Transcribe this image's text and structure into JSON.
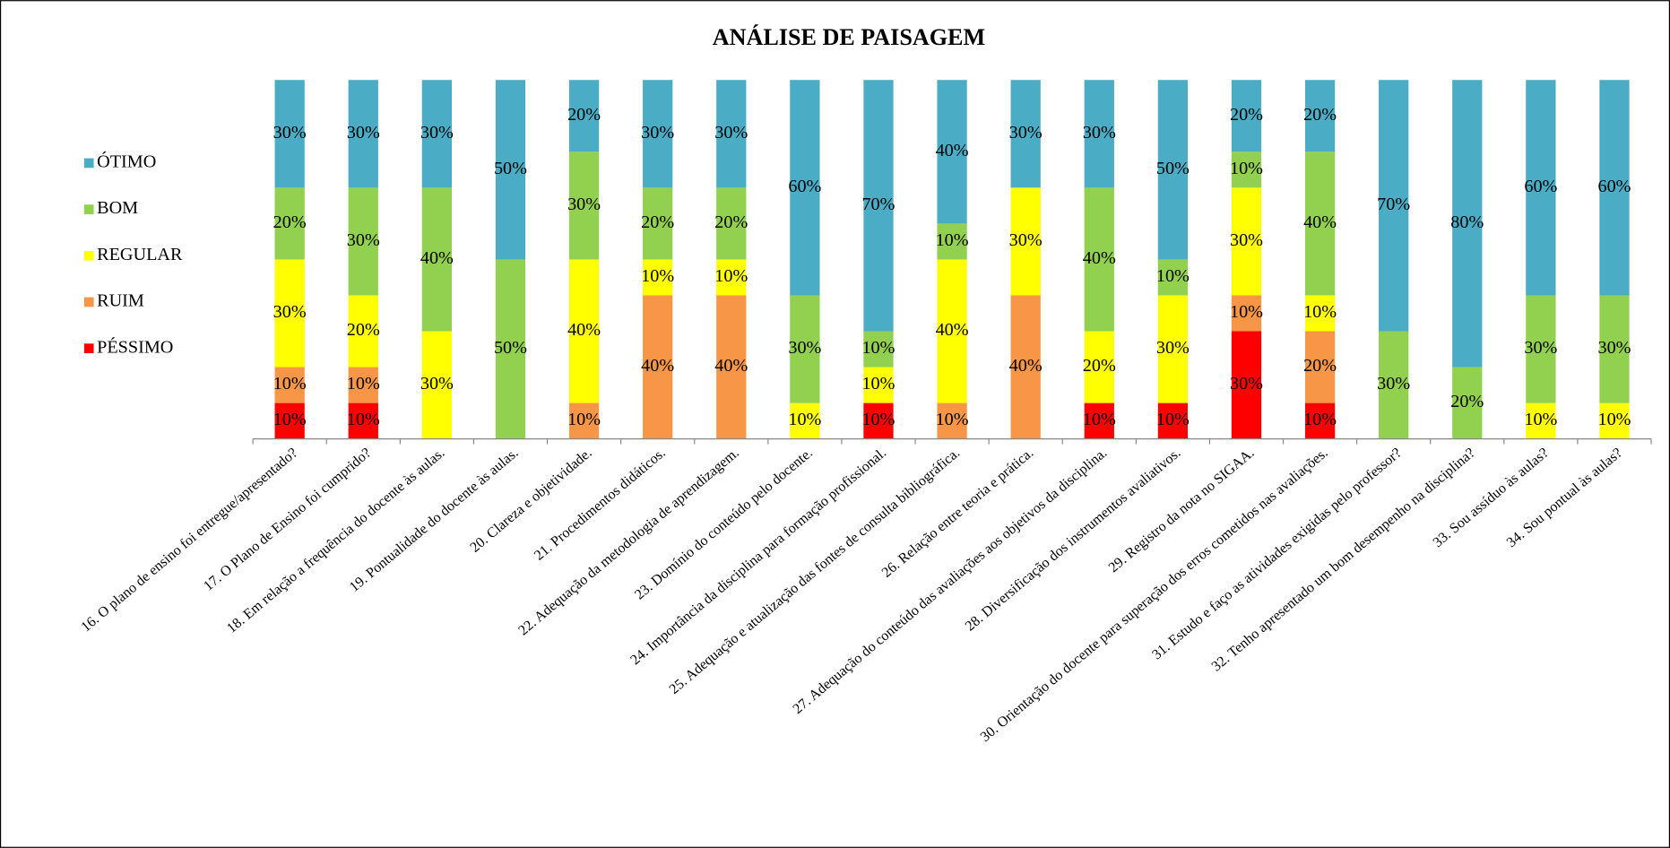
{
  "chart_data": {
    "type": "stacked_bar",
    "title": "ANÁLISE DE PAISAGEM",
    "categories": [
      "16. O plano de ensino foi entregue/apresentado?",
      "17.  O Plano de Ensino foi cumprido?",
      "18.  Em relação a frequência do docente às aulas.",
      "19. Pontualidade do docente às aulas.",
      "20. Clareza e objetividade.",
      "21. Procedimentos didáticos.",
      "22. Adequação da metodologia de aprendizagem.",
      "23. Domínio do conteúdo pelo docente.",
      "24. Importância da disciplina para formação profissional.",
      "25. Adequação e atualização das fontes de consulta bibliográfica.",
      "26. Relação entre teoria e prática.",
      "27. Adequação do conteúdo das avaliações aos objetivos da disciplina.",
      "28. Diversificação dos instrumentos avaliativos.",
      "29. Registro da nota no SIGAA.",
      "30. Orientação do docente para superação dos erros cometidos nas avaliações.",
      "31. Estudo e faço as atividades exigidas pelo professor?",
      "32. Tenho apresentado um bom desempenho na disciplina?",
      "33. Sou assíduo às aulas?",
      "34. Sou pontual às aulas?"
    ],
    "series": [
      {
        "name": "PÉSSIMO",
        "color": "#ff0000",
        "values": [
          10,
          10,
          0,
          0,
          0,
          0,
          0,
          0,
          10,
          0,
          0,
          10,
          10,
          30,
          10,
          0,
          0,
          0,
          0
        ],
        "value_labels": [
          "10%",
          "10%",
          null,
          null,
          null,
          null,
          null,
          null,
          "10%",
          null,
          null,
          "10%",
          "10%",
          "30%",
          "10%",
          null,
          null,
          null,
          null
        ]
      },
      {
        "name": "RUIM",
        "color": "#f79646",
        "values": [
          10,
          10,
          0,
          0,
          10,
          40,
          40,
          0,
          0,
          10,
          40,
          0,
          0,
          10,
          20,
          0,
          0,
          0,
          0
        ],
        "value_labels": [
          "10%",
          "10%",
          null,
          null,
          "10%",
          "40%",
          "40%",
          null,
          null,
          "10%",
          "40%",
          null,
          null,
          "10%",
          "20%",
          null,
          null,
          null,
          null
        ]
      },
      {
        "name": "REGULAR",
        "color": "#ffff00",
        "values": [
          30,
          20,
          30,
          0,
          40,
          10,
          10,
          10,
          10,
          40,
          30,
          20,
          30,
          30,
          10,
          0,
          0,
          10,
          10
        ],
        "value_labels": [
          "30%",
          "20%",
          "30%",
          null,
          "40%",
          "10%",
          "10%",
          "10%",
          "10%",
          "40%",
          "30%",
          "20%",
          "30%",
          "30%",
          "10%",
          null,
          null,
          "10%",
          "10%"
        ]
      },
      {
        "name": "BOM",
        "color": "#92d050",
        "values": [
          20,
          30,
          40,
          50,
          30,
          20,
          20,
          30,
          10,
          10,
          0,
          40,
          10,
          10,
          40,
          30,
          20,
          30,
          30
        ],
        "value_labels": [
          "20%",
          "30%",
          "40%",
          "50%",
          "30%",
          "20%",
          "20%",
          "30%",
          "10%",
          "10%",
          null,
          "40%",
          "10%",
          "10%",
          "40%",
          "30%",
          "20%",
          "30%",
          "30%"
        ]
      },
      {
        "name": "ÓTIMO",
        "color": "#4bacc6",
        "values": [
          30,
          30,
          30,
          50,
          20,
          30,
          30,
          60,
          70,
          40,
          30,
          30,
          50,
          20,
          20,
          70,
          80,
          60,
          60
        ],
        "value_labels": [
          "30%",
          "30%",
          "30%",
          "50%",
          "20%",
          "30%",
          "30%",
          "60%",
          "70%",
          "40%",
          "30%",
          "30%",
          "50%",
          "20%",
          "20%",
          "70%",
          "80%",
          "60%",
          "60%"
        ]
      }
    ],
    "ylim": [
      0,
      100
    ]
  }
}
